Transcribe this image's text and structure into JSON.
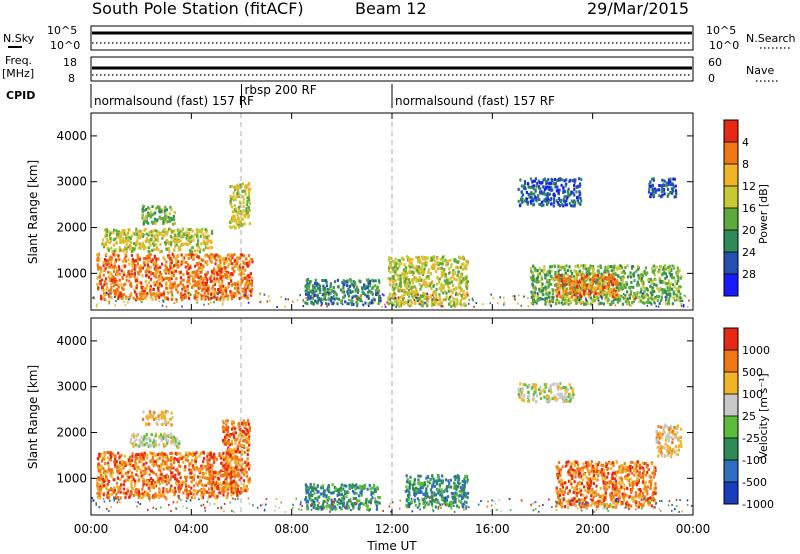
{
  "header": {
    "title": "South Pole Station (fitACF)",
    "beam": "Beam 12",
    "date": "29/Mar/2015"
  },
  "summary_panels": {
    "nsky_label": "N.Sky",
    "nsearch_label": "N.Search",
    "nsky_ticks": [
      "10^5",
      "10^0"
    ],
    "nsky_right_ticks": [
      "10^5",
      "10^0"
    ],
    "freq_label": "Freq.",
    "freq_unit": "[MHz]",
    "freq_ticks": [
      "18",
      "8"
    ],
    "nave_label": "Nave",
    "nave_ticks": [
      "60",
      "0"
    ],
    "cpid_label": "CPID",
    "cpid_segments": [
      {
        "label": "normalsound (fast) 157 RF",
        "start_ut": 0.0,
        "end_ut": 6.0
      },
      {
        "label": "rbsp 200 RF",
        "start_ut": 6.0,
        "end_ut": 12.0
      },
      {
        "label": "normalsound (fast) 157 RF",
        "start_ut": 12.0,
        "end_ut": 24.0
      }
    ]
  },
  "chart_data": [
    {
      "type": "heatmap",
      "name": "power",
      "xlabel": "",
      "ylabel": "Slant Range [km]",
      "xlim": [
        0,
        24
      ],
      "ylim": [
        200,
        4500
      ],
      "yticks": [
        "1000",
        "2000",
        "3000",
        "4000"
      ],
      "colorbar": {
        "label": "Power [dB]",
        "ticks": [
          "4",
          "8",
          "12",
          "16",
          "20",
          "24",
          "28"
        ],
        "colors": [
          "#1a1aff",
          "#2450b4",
          "#2e8b57",
          "#5aaa3c",
          "#c8c832",
          "#f0b428",
          "#f07814",
          "#e62814"
        ]
      },
      "regions": [
        {
          "x": [
            0.2,
            6.4
          ],
          "y": [
            450,
            1450
          ],
          "level": 6
        },
        {
          "x": [
            0.4,
            4.8
          ],
          "y": [
            1500,
            2000
          ],
          "level": 4
        },
        {
          "x": [
            2.0,
            3.3
          ],
          "y": [
            2100,
            2500
          ],
          "level": 3
        },
        {
          "x": [
            5.5,
            6.3
          ],
          "y": [
            2000,
            3000
          ],
          "level": 4
        },
        {
          "x": [
            8.5,
            11.5
          ],
          "y": [
            350,
            900
          ],
          "level": 2
        },
        {
          "x": [
            11.8,
            15.0
          ],
          "y": [
            300,
            1400
          ],
          "level": 4
        },
        {
          "x": [
            17.0,
            19.5
          ],
          "y": [
            2500,
            3100
          ],
          "level": 1
        },
        {
          "x": [
            22.2,
            23.3
          ],
          "y": [
            2700,
            3100
          ],
          "level": 1
        },
        {
          "x": [
            17.5,
            23.5
          ],
          "y": [
            350,
            1200
          ],
          "level": 3
        },
        {
          "x": [
            18.5,
            21.0
          ],
          "y": [
            500,
            1000
          ],
          "level": 6
        }
      ]
    },
    {
      "type": "heatmap",
      "name": "velocity",
      "xlabel": "Time UT",
      "ylabel": "Slant Range [km]",
      "xlim": [
        0,
        24
      ],
      "ylim": [
        200,
        4500
      ],
      "xticks": [
        "00:00",
        "04:00",
        "08:00",
        "12:00",
        "16:00",
        "20:00",
        "00:00"
      ],
      "yticks": [
        "1000",
        "2000",
        "3000",
        "4000"
      ],
      "colorbar": {
        "label": "Velocity [m s⁻¹]",
        "ticks": [
          "1000",
          "500",
          "100",
          "25",
          "-25",
          "-100",
          "-500",
          "-1000"
        ],
        "colors": [
          "#1a3cbe",
          "#2e6ebe",
          "#2e8b57",
          "#5abe3c",
          "#c8c8c8",
          "#f0b428",
          "#f07814",
          "#e62814"
        ]
      },
      "regions": [
        {
          "x": [
            0.2,
            5.8
          ],
          "y": [
            600,
            1600
          ],
          "level": 6
        },
        {
          "x": [
            1.5,
            3.5
          ],
          "y": [
            1700,
            2000
          ],
          "level": 4
        },
        {
          "x": [
            2.0,
            3.2
          ],
          "y": [
            2200,
            2500
          ],
          "level": 5
        },
        {
          "x": [
            5.2,
            6.3
          ],
          "y": [
            700,
            2300
          ],
          "level": 6
        },
        {
          "x": [
            8.5,
            11.5
          ],
          "y": [
            350,
            900
          ],
          "level": 2
        },
        {
          "x": [
            12.5,
            15.0
          ],
          "y": [
            400,
            1100
          ],
          "level": 2
        },
        {
          "x": [
            17.0,
            19.2
          ],
          "y": [
            2700,
            3100
          ],
          "level": 4
        },
        {
          "x": [
            18.5,
            22.5
          ],
          "y": [
            400,
            1400
          ],
          "level": 6
        },
        {
          "x": [
            22.5,
            23.5
          ],
          "y": [
            1500,
            2200
          ],
          "level": 5
        }
      ]
    }
  ]
}
